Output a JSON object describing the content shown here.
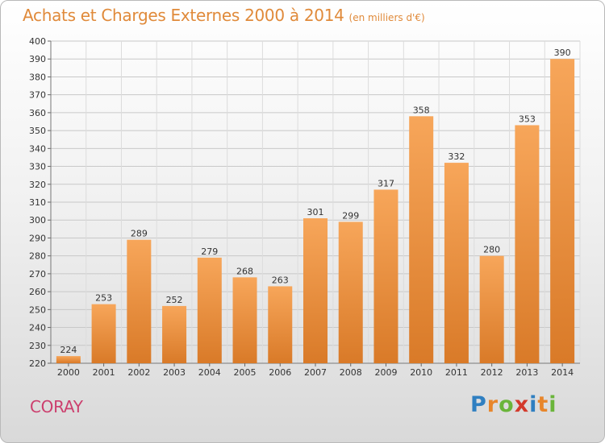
{
  "header": {
    "title": "Achats et Charges Externes 2000 à 2014",
    "subtitle": "(en milliers d'€)"
  },
  "footer": {
    "commune": "CORAY",
    "brand_letters": [
      "P",
      "r",
      "o",
      "x",
      "i",
      "t",
      "i"
    ],
    "brand_colors": [
      "#2f7fc1",
      "#e8862b",
      "#6ab53a",
      "#d33a2c",
      "#2f7fc1",
      "#e8862b",
      "#6ab53a"
    ]
  },
  "chart_data": {
    "type": "bar",
    "title": "Achats et Charges Externes 2000 à 2014",
    "subtitle": "(en milliers d'€)",
    "categories": [
      "2000",
      "2001",
      "2002",
      "2003",
      "2004",
      "2005",
      "2006",
      "2007",
      "2008",
      "2009",
      "2010",
      "2011",
      "2012",
      "2013",
      "2014"
    ],
    "values": [
      224,
      253,
      289,
      252,
      279,
      268,
      263,
      301,
      299,
      317,
      358,
      332,
      280,
      353,
      390
    ],
    "ylim": [
      220,
      400
    ],
    "yticks": [
      220,
      230,
      240,
      250,
      260,
      270,
      280,
      290,
      300,
      310,
      320,
      330,
      340,
      350,
      360,
      370,
      380,
      390,
      400
    ],
    "grid": true,
    "colors": {
      "bar_top": "#f7a65a",
      "bar_bottom": "#d97a28",
      "grid": "#c8c8c8"
    }
  }
}
